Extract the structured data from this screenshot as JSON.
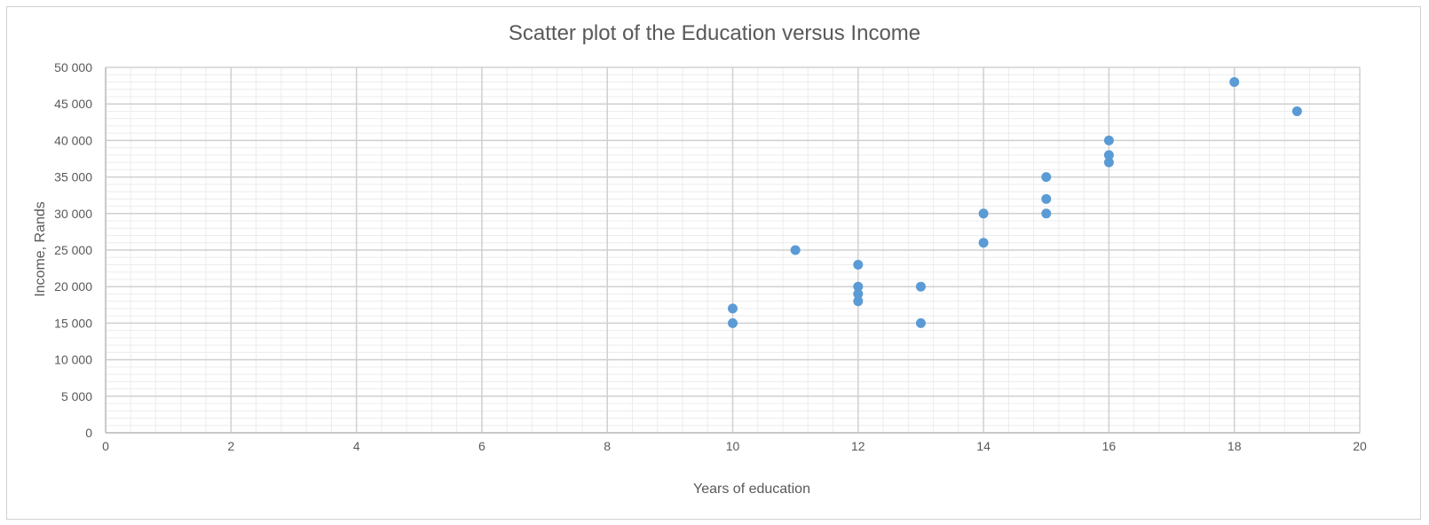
{
  "chart_data": {
    "type": "scatter",
    "title": "Scatter plot of the Education versus Income",
    "xlabel": "Years of education",
    "ylabel": "Income, Rands",
    "xlim": [
      0,
      20
    ],
    "ylim": [
      0,
      50000
    ],
    "x_ticks": [
      0,
      2,
      4,
      6,
      8,
      10,
      12,
      14,
      16,
      18,
      20
    ],
    "x_tick_labels": [
      "0",
      "2",
      "4",
      "6",
      "8",
      "10",
      "12",
      "14",
      "16",
      "18",
      "20"
    ],
    "y_ticks": [
      0,
      5000,
      10000,
      15000,
      20000,
      25000,
      30000,
      35000,
      40000,
      45000,
      50000
    ],
    "y_tick_labels": [
      "0",
      "5 000",
      "10 000",
      "15 000",
      "20 000",
      "25 000",
      "30 000",
      "35 000",
      "40 000",
      "45 000",
      "50 000"
    ],
    "grid": true,
    "legend": "none",
    "marker_color": "#5B9BD5",
    "series": [
      {
        "points": [
          {
            "x": 10,
            "y": 15000
          },
          {
            "x": 10,
            "y": 17000
          },
          {
            "x": 11,
            "y": 25000
          },
          {
            "x": 12,
            "y": 18000
          },
          {
            "x": 12,
            "y": 19000
          },
          {
            "x": 12,
            "y": 20000
          },
          {
            "x": 12,
            "y": 23000
          },
          {
            "x": 13,
            "y": 15000
          },
          {
            "x": 13,
            "y": 20000
          },
          {
            "x": 14,
            "y": 26000
          },
          {
            "x": 14,
            "y": 30000
          },
          {
            "x": 15,
            "y": 30000
          },
          {
            "x": 15,
            "y": 32000
          },
          {
            "x": 15,
            "y": 35000
          },
          {
            "x": 16,
            "y": 37000
          },
          {
            "x": 16,
            "y": 38000
          },
          {
            "x": 16,
            "y": 40000
          },
          {
            "x": 18,
            "y": 48000
          },
          {
            "x": 19,
            "y": 44000
          }
        ]
      }
    ]
  }
}
